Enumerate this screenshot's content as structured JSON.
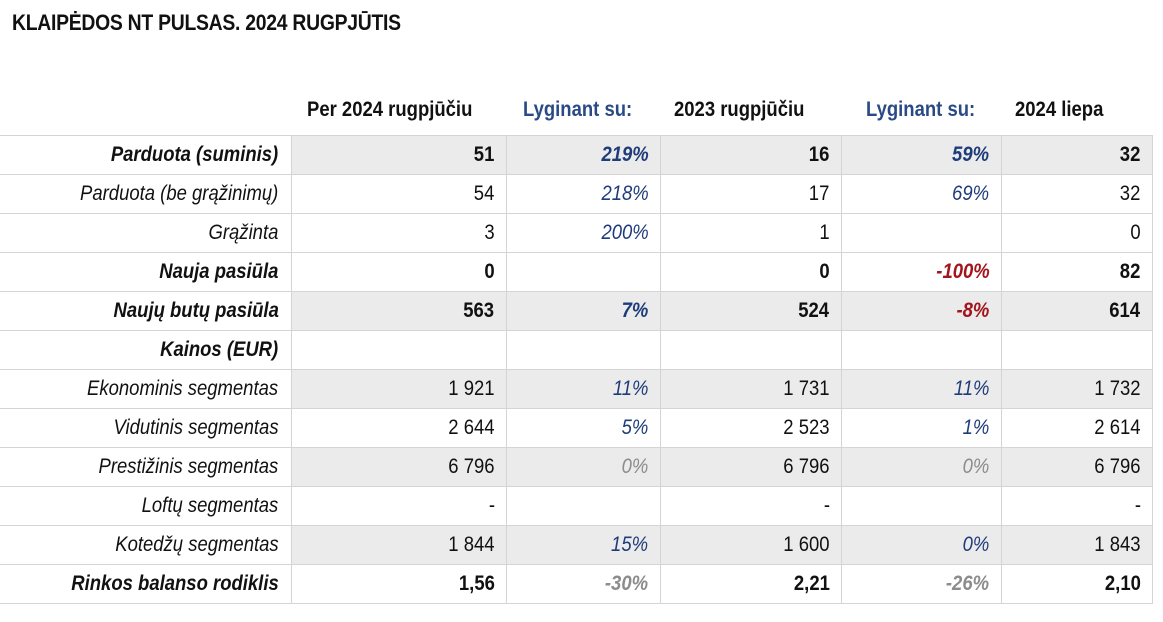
{
  "title": "KLAIPĖDOS NT PULSAS. 2024 RUGPJŪTIS",
  "headers": {
    "col1": "Per 2024 rugpjūčiu",
    "col2": "Lyginant su:",
    "col3": "2023 rugpjūčiu",
    "col4": "Lyginant su:",
    "col5": "2024 liepa"
  },
  "colors": {
    "accent_blue": "#1f3c7a",
    "negative_red": "#a3141c",
    "neutral_grey": "#8c8c8c",
    "row_shade": "#ebebeb"
  },
  "rows": [
    {
      "label": "Parduota (suminis)",
      "v1": "51",
      "p1": "219%",
      "v2": "16",
      "p2": "59%",
      "v3": "32"
    },
    {
      "label": "Parduota (be grąžinimų)",
      "v1": "54",
      "p1": "218%",
      "v2": "17",
      "p2": "69%",
      "v3": "32"
    },
    {
      "label": "Grąžinta",
      "v1": "3",
      "p1": "200%",
      "v2": "1",
      "p2": "",
      "v3": "0"
    },
    {
      "label": "Nauja pasiūla",
      "v1": "0",
      "p1": "",
      "v2": "0",
      "p2": "-100%",
      "v3": "82"
    },
    {
      "label": "Naujų butų pasiūla",
      "v1": "563",
      "p1": "7%",
      "v2": "524",
      "p2": "-8%",
      "v3": "614"
    },
    {
      "label": "Kainos (EUR)",
      "v1": "",
      "p1": "",
      "v2": "",
      "p2": "",
      "v3": ""
    },
    {
      "label": "Ekonominis segmentas",
      "v1": "1 921",
      "p1": "11%",
      "v2": "1 731",
      "p2": "11%",
      "v3": "1 732"
    },
    {
      "label": "Vidutinis segmentas",
      "v1": "2 644",
      "p1": "5%",
      "v2": "2 523",
      "p2": "1%",
      "v3": "2 614"
    },
    {
      "label": "Prestižinis segmentas",
      "v1": "6 796",
      "p1": "0%",
      "v2": "6 796",
      "p2": "0%",
      "v3": "6 796"
    },
    {
      "label": "Loftų segmentas",
      "v1": "-",
      "p1": "",
      "v2": "-",
      "p2": "",
      "v3": "-"
    },
    {
      "label": "Kotedžų segmentas",
      "v1": "1 844",
      "p1": "15%",
      "v2": "1 600",
      "p2": "0%",
      "v3": "1 843"
    },
    {
      "label": "Rinkos balanso rodiklis",
      "v1": "1,56",
      "p1": "-30%",
      "v2": "2,21",
      "p2": "-26%",
      "v3": "2,10"
    }
  ]
}
